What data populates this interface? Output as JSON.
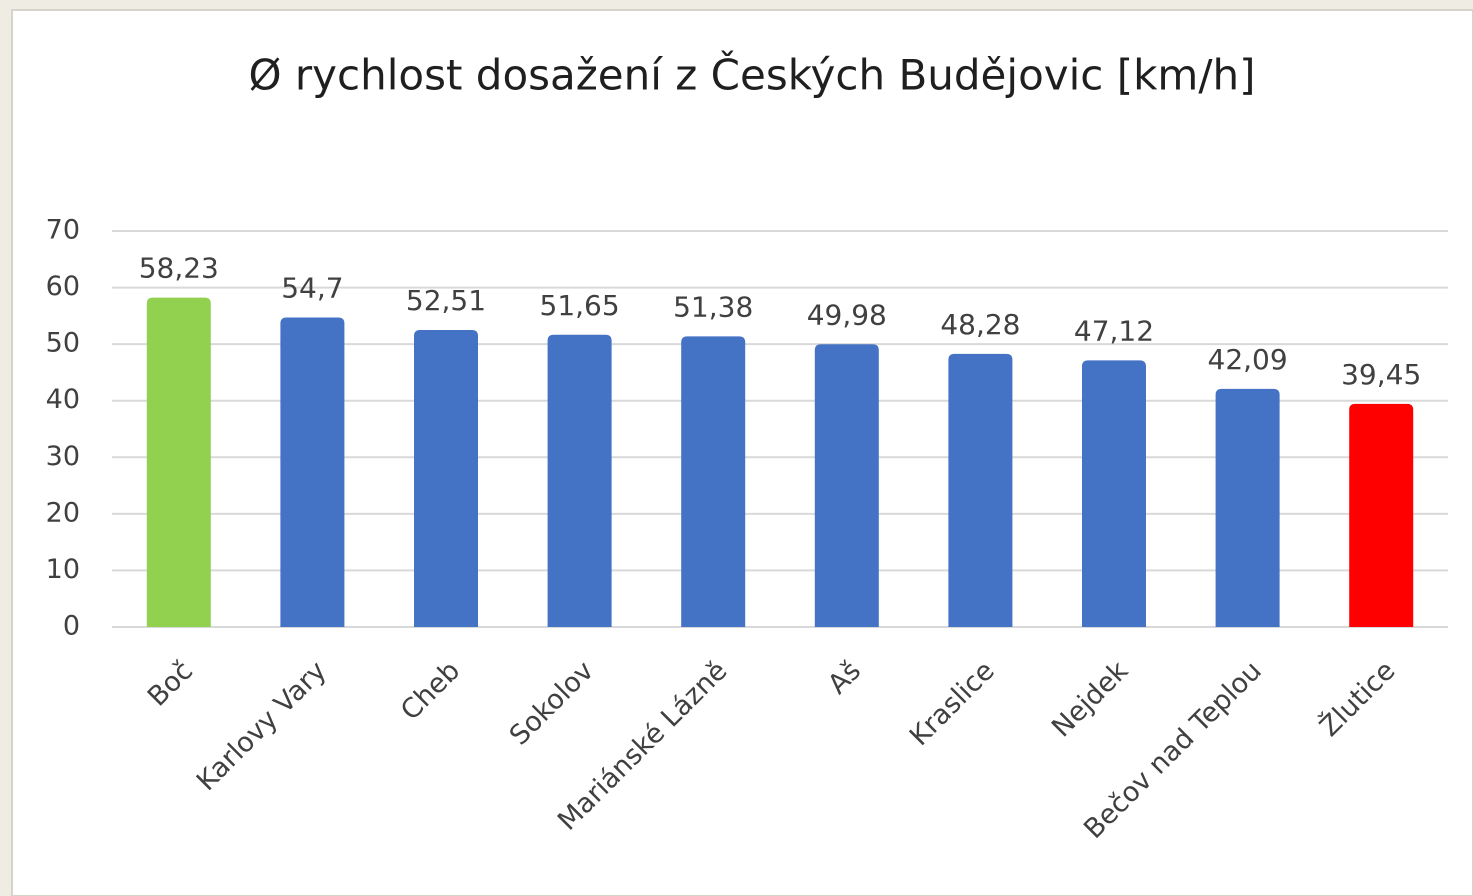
{
  "chart_data": {
    "type": "bar",
    "title": "Ø rychlost dosažení z Českých Budějovic [km/h]",
    "categories": [
      "Boč",
      "Karlovy Vary",
      "Cheb",
      "Sokolov",
      "Mariánské Lázně",
      "Aš",
      "Kraslice",
      "Nejdek",
      "Bečov nad Teplou",
      "Žlutice"
    ],
    "values": [
      58.23,
      54.7,
      52.51,
      51.65,
      51.38,
      49.98,
      48.28,
      47.12,
      42.09,
      39.45
    ],
    "value_labels": [
      "58,23",
      "54,7",
      "52,51",
      "51,65",
      "51,38",
      "49,98",
      "48,28",
      "47,12",
      "42,09",
      "39,45"
    ],
    "colors": [
      "#92d050",
      "#4472c4",
      "#4472c4",
      "#4472c4",
      "#4472c4",
      "#4472c4",
      "#4472c4",
      "#4472c4",
      "#4472c4",
      "#ff0000"
    ],
    "ylim": [
      0,
      70
    ],
    "yticks": [
      0,
      10,
      20,
      30,
      40,
      50,
      60,
      70
    ],
    "grid": true
  }
}
